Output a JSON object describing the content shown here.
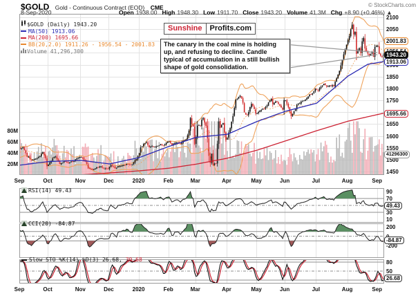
{
  "header": {
    "symbol": "$GOLD",
    "description": "Gold - Continuous Contract (EOD)",
    "exchange": "CME",
    "watermark": "© StockCharts.com",
    "date": "8-Sep-2020",
    "quote": [
      {
        "label": "Open",
        "value": "1938.00"
      },
      {
        "label": "High",
        "value": "1948.30"
      },
      {
        "label": "Low",
        "value": "1911.70"
      },
      {
        "label": "Close",
        "value": "1943.20"
      },
      {
        "label": "Volume",
        "value": "41.3M"
      },
      {
        "label": "Chg",
        "value": "+8.90 (+0.46%) ▲"
      }
    ]
  },
  "logo": {
    "part1": "Sunshine",
    "part2": "Profits.com"
  },
  "annotation": "The canary in the coal mine is holding up, and refusing to decline. Candle typical of accumulation in a still bullish shape of gold consolidation.",
  "legend": {
    "items": [
      {
        "icon": "candlestick-icon",
        "color": "#222222",
        "text": "$GOLD (Daily) 1943.20"
      },
      {
        "icon": "dash-icon",
        "color": "#2b2bb4",
        "text": "MA(50) 1913.06"
      },
      {
        "icon": "dash-icon",
        "color": "#cc2233",
        "text": "MA(200) 1695.66"
      },
      {
        "icon": "dash-icon",
        "color": "#e8882d",
        "text": "BB(20,2.0) 1911.26 - 1956.54 - 2001.83"
      },
      {
        "icon": "volume-icon",
        "color": "#777777",
        "text": "Volume 41,296,300"
      }
    ]
  },
  "panel_labels": {
    "rsi": "RSI(14) 49.43",
    "cci": "CCI(20) -84.87",
    "sto_k": "Slow STO %K(14) %D(3) 26.68,",
    "sto_d": "30.68"
  },
  "axes": {
    "months": [
      "Sep",
      "Oct",
      "Nov",
      "Dec",
      "2020",
      "Feb",
      "Mar",
      "Apr",
      "May",
      "Jun",
      "Jul",
      "Aug",
      "Sep"
    ],
    "price_ticks": [
      2100,
      2050,
      2000,
      1950,
      1900,
      1850,
      1800,
      1750,
      1700,
      1650,
      1600,
      1550,
      1500,
      1450
    ],
    "volume_ticks": [
      {
        "label": "80M",
        "value": 80
      },
      {
        "label": "60M",
        "value": 60
      },
      {
        "label": "40M",
        "value": 40
      },
      {
        "label": "20M",
        "value": 20
      }
    ],
    "rsi_ticks": [
      90,
      70,
      30,
      10
    ],
    "cci_ticks": [
      200,
      0,
      -200
    ],
    "sto_ticks": [
      80,
      50
    ],
    "bubbles": {
      "main": [
        {
          "text": "2001.83",
          "price": 2001.83,
          "border": "#e8882d",
          "bg": "#ffffff",
          "fg": "#111111"
        },
        {
          "text": "1956.54",
          "price": 1956.54,
          "border": "#e8882d",
          "bg": "#ffffff",
          "fg": "#111111"
        },
        {
          "text": "1913.06",
          "price": 1913.06,
          "border": "#2b2bb4",
          "bg": "#ffffff",
          "fg": "#111111"
        },
        {
          "text": "1943.20",
          "price": 1943.2,
          "border": "#111111",
          "bg": "#111111",
          "fg": "#ffffff"
        },
        {
          "text": "1695.66",
          "price": 1695.66,
          "border": "#cc2233",
          "bg": "#ffffff",
          "fg": "#111111"
        }
      ],
      "volume": {
        "text": "41296300",
        "millions": 41.3,
        "border": "#999999"
      },
      "rsi": {
        "text": "49.43",
        "value": 49.43
      },
      "cci": {
        "text": "-84.87",
        "value": -84.87
      },
      "sto": {
        "text": "26.68",
        "value": 26.68
      }
    }
  },
  "chart_data": {
    "type": "candlestick",
    "title": "$GOLD Gold - Continuous Contract (EOD) CME",
    "timeframe": "daily",
    "x_range": [
      "Sep-2019",
      "Sep-2020"
    ],
    "price_range": [
      1450,
      2100
    ],
    "trading_days": 257,
    "month_start_days": [
      0,
      20,
      43,
      63,
      84,
      105,
      124,
      146,
      167,
      187,
      209,
      231,
      252
    ],
    "close_anchors": [
      [
        0,
        1546
      ],
      [
        2,
        1552
      ],
      [
        5,
        1512
      ],
      [
        8,
        1498
      ],
      [
        11,
        1504
      ],
      [
        14,
        1515
      ],
      [
        16,
        1532
      ],
      [
        18,
        1506
      ],
      [
        19,
        1472
      ],
      [
        21,
        1489
      ],
      [
        23,
        1505
      ],
      [
        25,
        1513
      ],
      [
        28,
        1482
      ],
      [
        31,
        1494
      ],
      [
        34,
        1487
      ],
      [
        37,
        1492
      ],
      [
        40,
        1505
      ],
      [
        42,
        1511
      ],
      [
        44,
        1508
      ],
      [
        46,
        1493
      ],
      [
        48,
        1463
      ],
      [
        51,
        1457
      ],
      [
        54,
        1468
      ],
      [
        57,
        1472
      ],
      [
        59,
        1463
      ],
      [
        62,
        1461
      ],
      [
        64,
        1477
      ],
      [
        67,
        1463
      ],
      [
        70,
        1474
      ],
      [
        73,
        1476
      ],
      [
        76,
        1481
      ],
      [
        79,
        1479
      ],
      [
        81,
        1498
      ],
      [
        83,
        1515
      ],
      [
        84,
        1528
      ],
      [
        85,
        1552
      ],
      [
        87,
        1566
      ],
      [
        89,
        1574
      ],
      [
        91,
        1552
      ],
      [
        93,
        1557
      ],
      [
        95,
        1554
      ],
      [
        97,
        1558
      ],
      [
        99,
        1565
      ],
      [
        101,
        1558
      ],
      [
        103,
        1572
      ],
      [
        105,
        1576
      ],
      [
        107,
        1562
      ],
      [
        109,
        1570
      ],
      [
        111,
        1573
      ],
      [
        113,
        1567
      ],
      [
        115,
        1580
      ],
      [
        117,
        1586
      ],
      [
        119,
        1622
      ],
      [
        120,
        1676
      ],
      [
        121,
        1650
      ],
      [
        122,
        1640
      ],
      [
        123,
        1566
      ],
      [
        124,
        1595
      ],
      [
        125,
        1644
      ],
      [
        127,
        1643
      ],
      [
        128,
        1668
      ],
      [
        129,
        1675
      ],
      [
        131,
        1642
      ],
      [
        132,
        1590
      ],
      [
        133,
        1516
      ],
      [
        134,
        1486
      ],
      [
        135,
        1525
      ],
      [
        136,
        1478
      ],
      [
        138,
        1484
      ],
      [
        139,
        1567
      ],
      [
        140,
        1661
      ],
      [
        141,
        1634
      ],
      [
        143,
        1654
      ],
      [
        145,
        1583
      ],
      [
        146,
        1591
      ],
      [
        148,
        1633
      ],
      [
        150,
        1684
      ],
      [
        152,
        1753
      ],
      [
        155,
        1769
      ],
      [
        157,
        1740
      ],
      [
        158,
        1699
      ],
      [
        160,
        1688
      ],
      [
        163,
        1735
      ],
      [
        165,
        1713
      ],
      [
        166,
        1694
      ],
      [
        168,
        1701
      ],
      [
        172,
        1714
      ],
      [
        175,
        1741
      ],
      [
        177,
        1756
      ],
      [
        178,
        1734
      ],
      [
        180,
        1745
      ],
      [
        182,
        1735
      ],
      [
        185,
        1711
      ],
      [
        186,
        1751
      ],
      [
        187,
        1750
      ],
      [
        191,
        1683
      ],
      [
        193,
        1705
      ],
      [
        196,
        1737
      ],
      [
        199,
        1746
      ],
      [
        201,
        1753
      ],
      [
        204,
        1775
      ],
      [
        206,
        1780
      ],
      [
        208,
        1800
      ],
      [
        210,
        1790
      ],
      [
        214,
        1820
      ],
      [
        216,
        1808
      ],
      [
        218,
        1813
      ],
      [
        221,
        1810
      ],
      [
        223,
        1843
      ],
      [
        226,
        1897
      ],
      [
        228,
        1944
      ],
      [
        230,
        1985
      ],
      [
        232,
        2021
      ],
      [
        233,
        2049
      ],
      [
        234,
        2069
      ],
      [
        235,
        2028
      ],
      [
        236,
        2039
      ],
      [
        237,
        1946
      ],
      [
        239,
        1970
      ],
      [
        240,
        1950
      ],
      [
        241,
        1998
      ],
      [
        242,
        2013
      ],
      [
        243,
        1970
      ],
      [
        245,
        1947
      ],
      [
        246,
        1939
      ],
      [
        248,
        1953
      ],
      [
        249,
        1933
      ],
      [
        250,
        1975
      ],
      [
        251,
        1979
      ],
      [
        252,
        1979
      ],
      [
        253,
        1945
      ],
      [
        254,
        1938
      ],
      [
        255,
        1934
      ],
      [
        256,
        1943.2
      ]
    ],
    "last_candle": {
      "open": 1938.0,
      "high": 1948.3,
      "low": 1911.7,
      "close": 1943.2
    },
    "volume_anchors_millions": [
      [
        0,
        44
      ],
      [
        10,
        38
      ],
      [
        19,
        52
      ],
      [
        30,
        36
      ],
      [
        43,
        40
      ],
      [
        50,
        46
      ],
      [
        63,
        30
      ],
      [
        72,
        27
      ],
      [
        84,
        46
      ],
      [
        90,
        52
      ],
      [
        100,
        38
      ],
      [
        110,
        44
      ],
      [
        119,
        62
      ],
      [
        123,
        88
      ],
      [
        129,
        72
      ],
      [
        134,
        96
      ],
      [
        138,
        85
      ],
      [
        143,
        60
      ],
      [
        148,
        55
      ],
      [
        155,
        48
      ],
      [
        160,
        44
      ],
      [
        166,
        40
      ],
      [
        172,
        36
      ],
      [
        178,
        34
      ],
      [
        184,
        36
      ],
      [
        191,
        32
      ],
      [
        196,
        36
      ],
      [
        201,
        33
      ],
      [
        208,
        38
      ],
      [
        214,
        44
      ],
      [
        221,
        42
      ],
      [
        226,
        52
      ],
      [
        230,
        64
      ],
      [
        234,
        78
      ],
      [
        237,
        92
      ],
      [
        240,
        62
      ],
      [
        243,
        56
      ],
      [
        246,
        50
      ],
      [
        250,
        46
      ],
      [
        253,
        44
      ],
      [
        256,
        41.3
      ]
    ],
    "ma50_anchors": [
      [
        0,
        1477
      ],
      [
        20,
        1492
      ],
      [
        43,
        1497
      ],
      [
        63,
        1482
      ],
      [
        84,
        1509
      ],
      [
        105,
        1556
      ],
      [
        124,
        1594
      ],
      [
        146,
        1607
      ],
      [
        167,
        1661
      ],
      [
        187,
        1704
      ],
      [
        209,
        1738
      ],
      [
        231,
        1852
      ],
      [
        245,
        1902
      ],
      [
        256,
        1913.06
      ]
    ],
    "ma200_anchors": [
      [
        0,
        1420
      ],
      [
        20,
        1428
      ],
      [
        43,
        1436
      ],
      [
        63,
        1444
      ],
      [
        84,
        1453
      ],
      [
        105,
        1464
      ],
      [
        124,
        1481
      ],
      [
        146,
        1506
      ],
      [
        167,
        1540
      ],
      [
        187,
        1579
      ],
      [
        209,
        1622
      ],
      [
        231,
        1662
      ],
      [
        256,
        1695.66
      ]
    ],
    "bollinger": {
      "period": 20,
      "stdev": 2,
      "last": {
        "lower": 1911.26,
        "mid": 1956.54,
        "upper": 2001.83
      }
    },
    "indicators": {
      "rsi": {
        "period": 14,
        "last": 49.43,
        "overbought": 70,
        "oversold": 30,
        "midline": 50
      },
      "cci": {
        "period": 20,
        "last": -84.87,
        "upper": 100,
        "lower": -100
      },
      "sto": {
        "k": 14,
        "d": 3,
        "last_k": 26.68,
        "last_d": 30.68,
        "upper": 80,
        "lower": 20,
        "midline": 50
      }
    },
    "colors": {
      "up": "#111111",
      "down": "#d22b2b",
      "ma50": "#2b2bb4",
      "ma200": "#cc2233",
      "bb": "#efa35c",
      "vol_up": "#b8b8b8",
      "vol_down": "#f2abb4",
      "fill_high": "#5a8f62",
      "fill_low": "#a05a5a",
      "sto_k": "#111111",
      "sto_d": "#cc2233",
      "grid": "#e3e3e3",
      "frame": "#9a9a9a",
      "thresh": "#8f8f8f"
    }
  }
}
